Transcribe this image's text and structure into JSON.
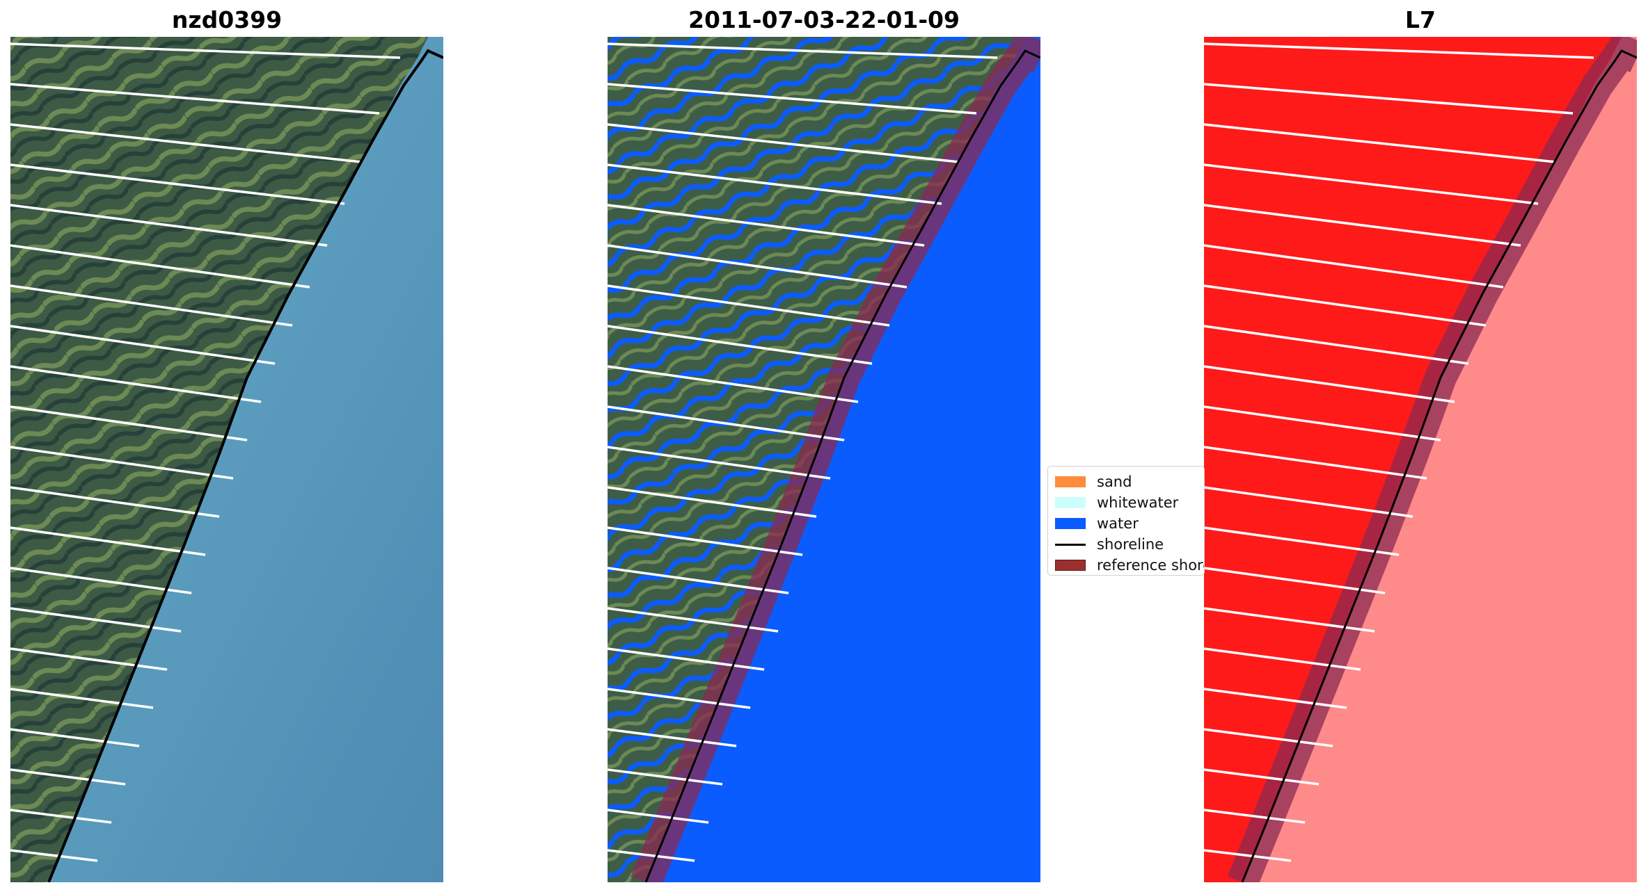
{
  "panels": [
    {
      "title": "nzd0399"
    },
    {
      "title": "2011-07-03-22-01-09"
    },
    {
      "title": "L7"
    }
  ],
  "legend": {
    "items": [
      {
        "label": "sand",
        "color": "#ff8c3a",
        "kind": "patch"
      },
      {
        "label": "whitewater",
        "color": "#ccfffb",
        "kind": "patch"
      },
      {
        "label": "water",
        "color": "#0a5cff",
        "kind": "patch"
      },
      {
        "label": "shoreline",
        "color": "#000000",
        "kind": "line"
      },
      {
        "label": "reference shoreline",
        "color": "#9b2f2f",
        "kind": "patch"
      }
    ]
  },
  "colors": {
    "land_rgb": "#3f5f42",
    "sea_rgb": "#5b9bbd",
    "water_class": "#0a5cff",
    "buffer": "#8a2a52",
    "l7_land": "#ff1a1a",
    "l7_sea": "#ff8a8a"
  }
}
